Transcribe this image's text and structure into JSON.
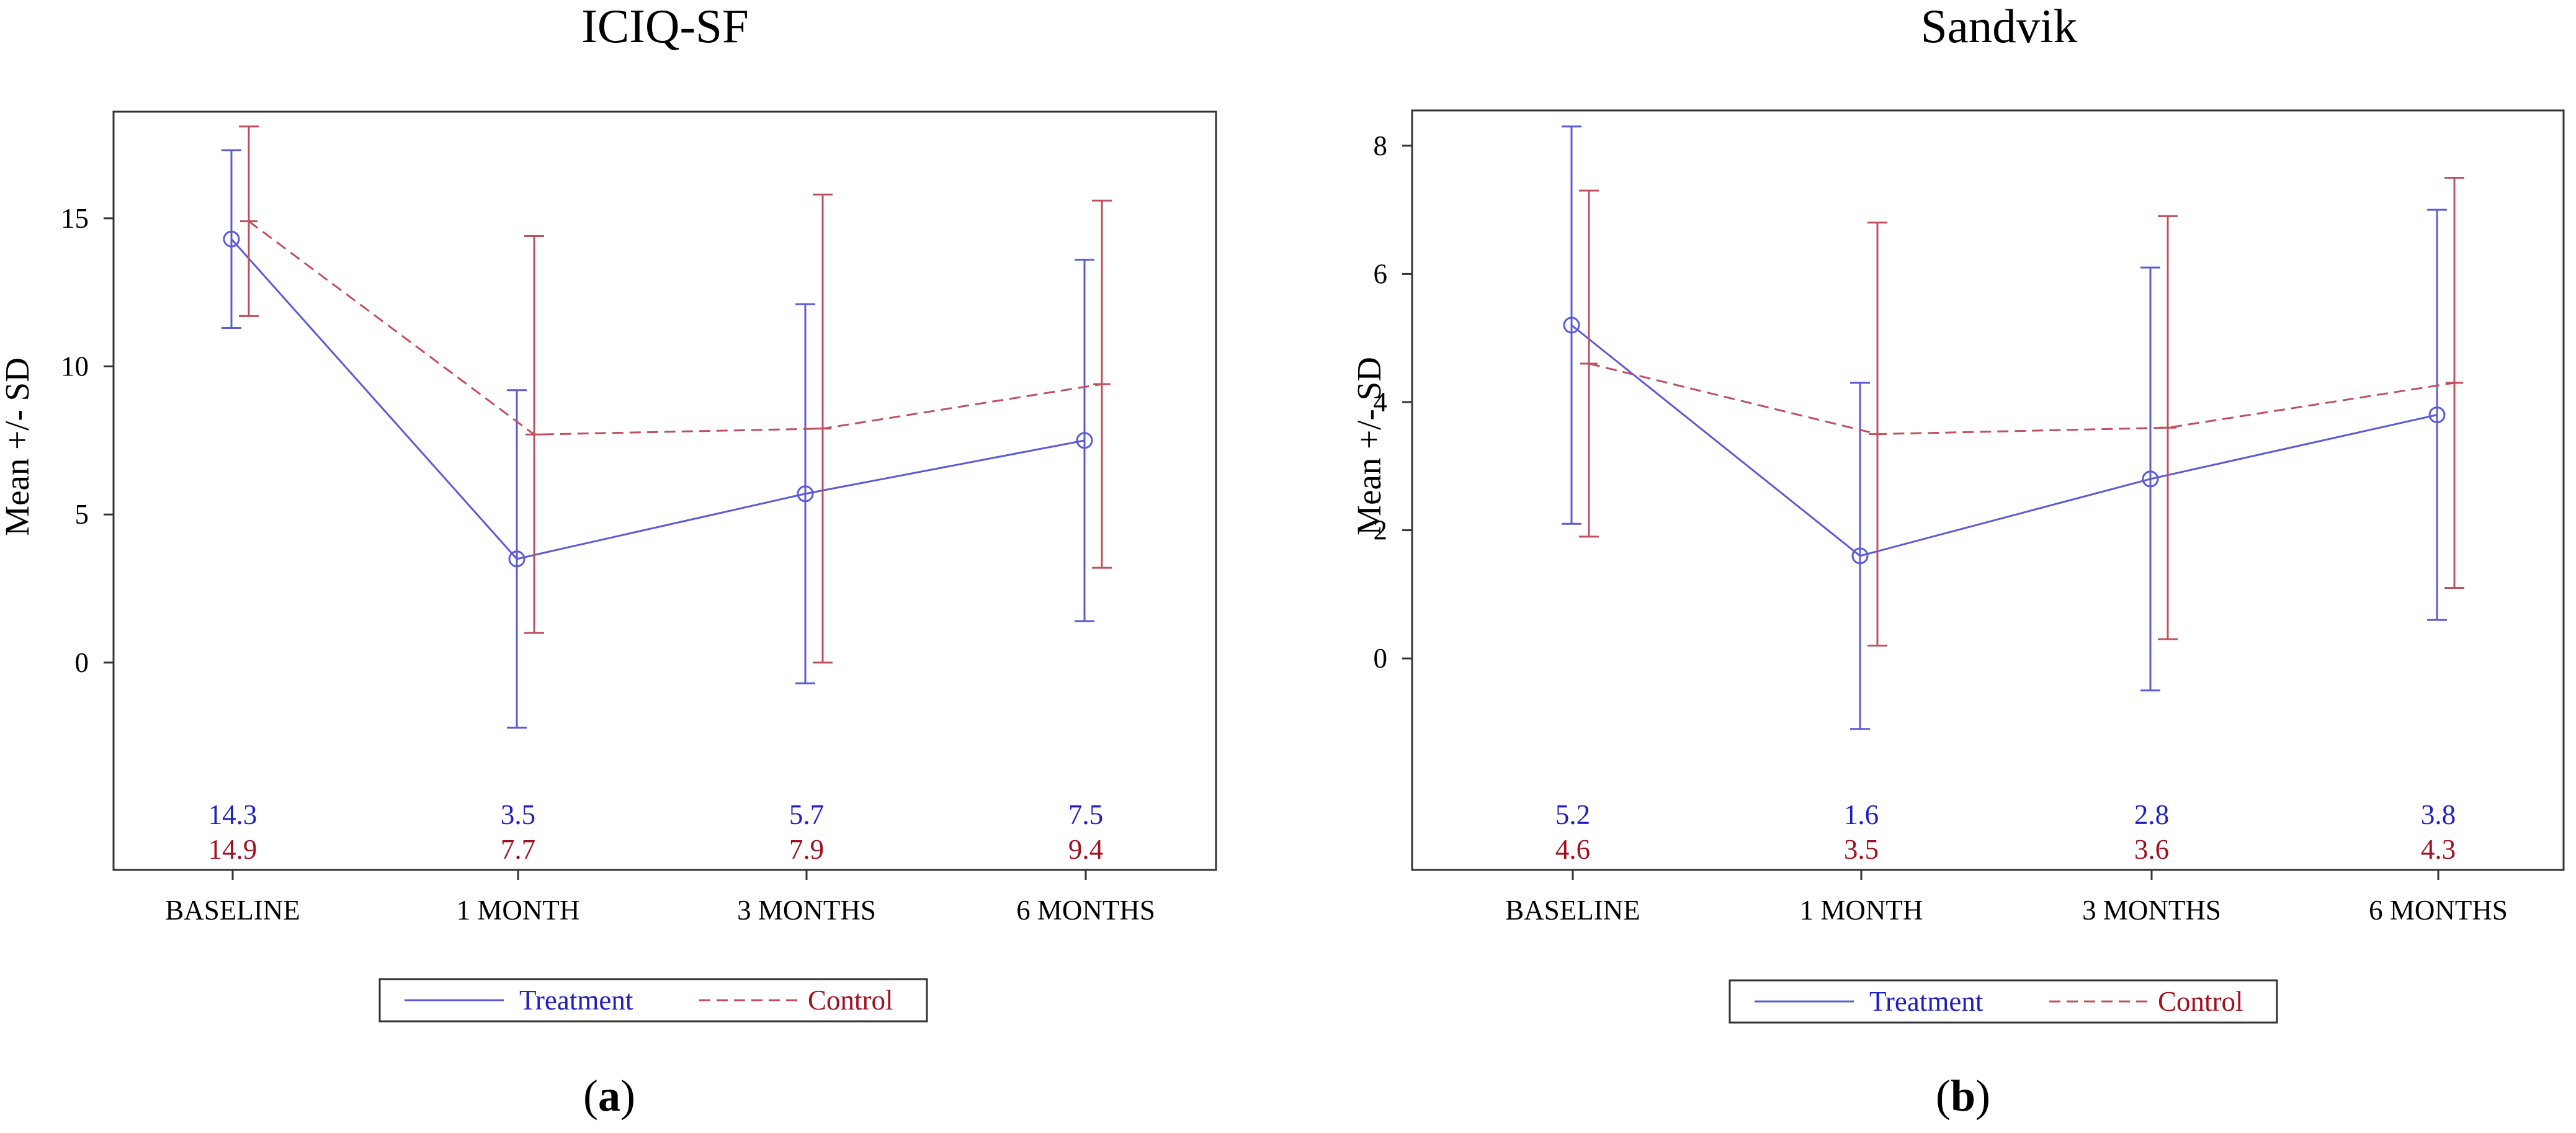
{
  "colors": {
    "treatment": "#5B5BD6",
    "treatment_text": "#2020C0",
    "control": "#C0505F",
    "control_text": "#A01020",
    "frame": "#333333"
  },
  "chart_data": [
    {
      "type": "line",
      "title": "ICIQ-SF",
      "ylabel": "Mean +/- SD",
      "xlabel": "",
      "categories": [
        "BASELINE",
        "1 MONTH",
        "3 MONTHS",
        "6 MONTHS"
      ],
      "ylim": [
        -7,
        18.6
      ],
      "yticks": [
        0,
        5,
        10,
        15
      ],
      "series": [
        {
          "name": "Treatment",
          "style": "solid",
          "marker": "circle",
          "values": [
            14.3,
            3.5,
            5.7,
            7.5
          ],
          "lower": [
            11.3,
            -2.2,
            -0.7,
            1.4
          ],
          "upper": [
            17.3,
            9.2,
            12.1,
            13.6
          ],
          "labels": [
            "14.3",
            "3.5",
            "5.7",
            "7.5"
          ]
        },
        {
          "name": "Control",
          "style": "dashed",
          "marker": "none",
          "values": [
            14.9,
            7.7,
            7.9,
            9.4
          ],
          "lower": [
            11.7,
            1.0,
            0.0,
            3.2
          ],
          "upper": [
            18.1,
            14.4,
            15.8,
            15.6
          ],
          "labels": [
            "14.9",
            "7.7",
            "7.9",
            "9.4"
          ]
        }
      ],
      "legend": [
        "Treatment",
        "Control"
      ],
      "caption": "a"
    },
    {
      "type": "line",
      "title": "Sandvik",
      "ylabel": "Mean +/- SD",
      "xlabel": "",
      "categories": [
        "BASELINE",
        "1 MONTH",
        "3 MONTHS",
        "6 MONTHS"
      ],
      "ylim": [
        -3.3,
        8.55
      ],
      "yticks": [
        0,
        2,
        4,
        6,
        8
      ],
      "series": [
        {
          "name": "Treatment",
          "style": "solid",
          "marker": "circle",
          "values": [
            5.2,
            1.6,
            2.8,
            3.8
          ],
          "lower": [
            2.1,
            -1.1,
            -0.5,
            0.6
          ],
          "upper": [
            8.3,
            4.3,
            6.1,
            7.0
          ],
          "labels": [
            "5.2",
            "1.6",
            "2.8",
            "3.8"
          ]
        },
        {
          "name": "Control",
          "style": "dashed",
          "marker": "none",
          "values": [
            4.6,
            3.5,
            3.6,
            4.3
          ],
          "lower": [
            1.9,
            0.2,
            0.3,
            1.1
          ],
          "upper": [
            7.3,
            6.8,
            6.9,
            7.5
          ],
          "labels": [
            "4.6",
            "3.5",
            "3.6",
            "4.3"
          ]
        }
      ],
      "legend": [
        "Treatment",
        "Control"
      ],
      "caption": "b"
    }
  ]
}
